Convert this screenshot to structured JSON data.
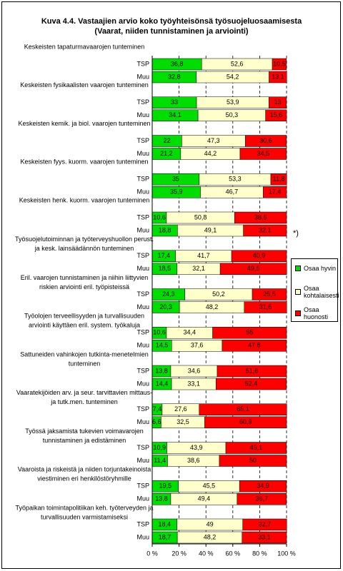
{
  "chart_data": {
    "type": "stacked-bar-horizontal",
    "title": [
      "Kuva 4.4. Vastaajien arvio koko työyhteisönsä työsuojeluosaamisesta",
      "(Vaarat, niiden tunnistaminen ja arviointi)"
    ],
    "categories": [
      [
        "Keskeisten tapaturmavaarojen tunteminen"
      ],
      [
        "Keskeisten fysikaalisten vaarojen tunteminen"
      ],
      [
        "Keskeisten kemik. ja biol. vaarojen tunteminen"
      ],
      [
        "Keskeisten fyys. kuorm. vaarojen tunteminen"
      ],
      [
        "Keskeisten henk. kuorm. vaarojen tunteminen"
      ],
      [
        "Työsuojelutoiminnan ja työterveyshuollon perust.",
        "ja kesk. lainsäädännön tunteminen"
      ],
      [
        "Eril. vaarojen tunnistaminen ja niihin liittyvien",
        "riskien arviointi eril. työpisteissä"
      ],
      [
        "Työolojen terveellisyyden ja turvallisuuden",
        "arviointi käyttäen eril. system. työkaluja"
      ],
      [
        "Sattuneiden vahinkojen tutkinta-menetelmien",
        "tunteminen"
      ],
      [
        "Vaaratekijöiden arv. ja seur. tarvittavien mittaus-",
        "ja tutk.men. tunteminen"
      ],
      [
        "Työssä jaksamista tukevien voimavarojen",
        "tunnistaminen ja edistäminen"
      ],
      [
        "Vaaroista ja riskeistä ja niiden torjuntakeinoista",
        "viestiminen eri henkilöstöryhmille"
      ],
      [
        "Työpaikan toimintapolitiikan keh. työterveyden ja",
        "turvallisuuden varmistamiseksi"
      ]
    ],
    "subcategories": [
      "TSP",
      "Muu"
    ],
    "series": [
      {
        "name": "Osaa hyvin",
        "color": "#00dd00",
        "values": [
          [
            36.8,
            32.8
          ],
          [
            33,
            34.1
          ],
          [
            22,
            21.2
          ],
          [
            35,
            35.9
          ],
          [
            10.6,
            18.8
          ],
          [
            17.4,
            18.5
          ],
          [
            24.3,
            20.3
          ],
          [
            10.6,
            14.5
          ],
          [
            13.8,
            14.4
          ],
          [
            7.4,
            6.6
          ],
          [
            10.9,
            11.4
          ],
          [
            19.5,
            13.8
          ],
          [
            18.4,
            18.7
          ]
        ],
        "value_labels": [
          [
            "36,8",
            "32,8"
          ],
          [
            "33",
            "34,1"
          ],
          [
            "22",
            "21,2"
          ],
          [
            "35",
            "35,9"
          ],
          [
            "10,6",
            "18,8"
          ],
          [
            "17,4",
            "18,5"
          ],
          [
            "24,3",
            "20,3"
          ],
          [
            "10,6",
            "14,5"
          ],
          [
            "13,8",
            "14,4"
          ],
          [
            "7,4",
            "6,6"
          ],
          [
            "10,9",
            "11,4"
          ],
          [
            "19,5",
            "13,8"
          ],
          [
            "18,4",
            "18,7"
          ]
        ]
      },
      {
        "name": "Osaa kohtalaisesti",
        "color": "#ffffcc",
        "values": [
          [
            52.6,
            54.2
          ],
          [
            53.9,
            50.3
          ],
          [
            47.3,
            44.2
          ],
          [
            53.3,
            46.7
          ],
          [
            50.8,
            49.1
          ],
          [
            41.7,
            32.1
          ],
          [
            50.2,
            48.2
          ],
          [
            34.4,
            37.6
          ],
          [
            34.6,
            33.1
          ],
          [
            27.6,
            32.5
          ],
          [
            43.9,
            38.6
          ],
          [
            45.5,
            49.4
          ],
          [
            49,
            48.2
          ]
        ],
        "value_labels": [
          [
            "52,6",
            "54,2"
          ],
          [
            "53,9",
            "50,3"
          ],
          [
            "47,3",
            "44,2"
          ],
          [
            "53,3",
            "46,7"
          ],
          [
            "50,8",
            "49,1"
          ],
          [
            "41,7",
            "32,1"
          ],
          [
            "50,2",
            "48,2"
          ],
          [
            "34,4",
            "37,6"
          ],
          [
            "34,6",
            "33,1"
          ],
          [
            "27,6",
            "32,5"
          ],
          [
            "43,9",
            "38,6"
          ],
          [
            "45,5",
            "49,4"
          ],
          [
            "49",
            "48,2"
          ]
        ]
      },
      {
        "name": "Osaa huonosti",
        "color": "#ff0000",
        "values": [
          [
            10.5,
            13.1
          ],
          [
            13,
            15.6
          ],
          [
            30.6,
            34.5
          ],
          [
            11.8,
            17.4
          ],
          [
            38.6,
            32.1
          ],
          [
            40.9,
            49.5
          ],
          [
            25.5,
            31.6
          ],
          [
            55,
            47.8
          ],
          [
            51.6,
            52.4
          ],
          [
            65.1,
            60.9
          ],
          [
            45.1,
            50
          ],
          [
            34.9,
            36.7
          ],
          [
            32.7,
            33.1
          ]
        ],
        "value_labels": [
          [
            "10,5",
            "13,1"
          ],
          [
            "13",
            "15,6"
          ],
          [
            "30,6",
            "34,5"
          ],
          [
            "11,8",
            "17,4"
          ],
          [
            "38,6",
            "32,1"
          ],
          [
            "40,9",
            "49,5"
          ],
          [
            "25,5",
            "31,6"
          ],
          [
            "55",
            "47,8"
          ],
          [
            "51,6",
            "52,4"
          ],
          [
            "65,1",
            "60,9"
          ],
          [
            "45,1",
            "50"
          ],
          [
            "34,9",
            "36,7"
          ],
          [
            "32,7",
            "33,1"
          ]
        ]
      }
    ],
    "xlim": [
      0,
      100
    ],
    "xticks": [
      {
        "value": 0,
        "label": "0 %"
      },
      {
        "value": 20,
        "label": "20 %"
      },
      {
        "value": 40,
        "label": "40 %"
      },
      {
        "value": 60,
        "label": "60 %"
      },
      {
        "value": 80,
        "label": "80 %"
      },
      {
        "value": 100,
        "label": "100 %"
      }
    ],
    "note": "*)",
    "grid": true,
    "legend": "right"
  }
}
